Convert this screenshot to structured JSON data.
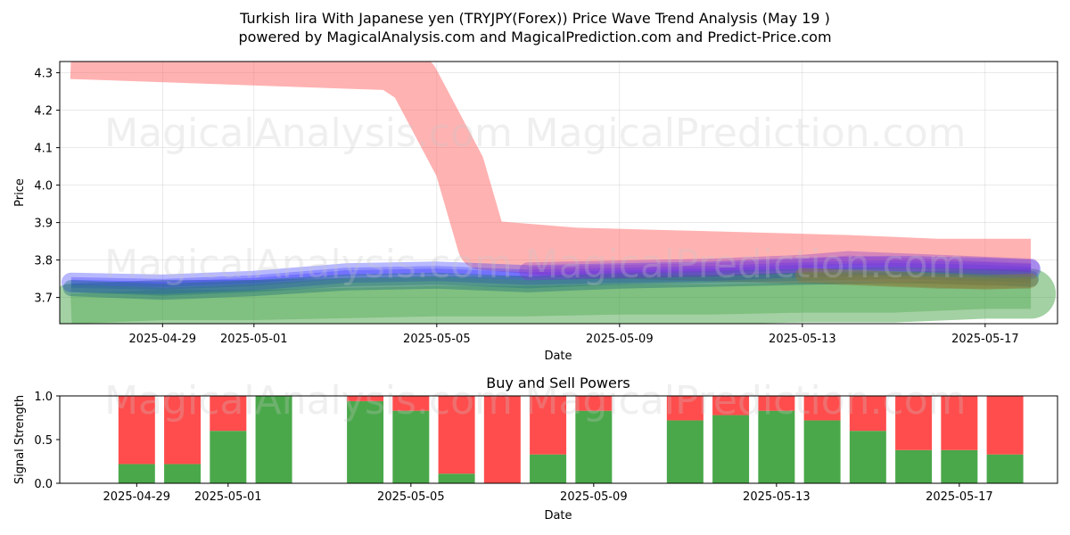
{
  "chart_data": [
    {
      "type": "area",
      "title": "Turkish lira With Japanese yen (TRYJPY(Forex)) Price Wave Trend Analysis (May 19 )",
      "subtitle": "powered by MagicalAnalysis.com and MagicalPrediction.com and Predict-Price.com",
      "xlabel": "Date",
      "ylabel": "Price",
      "xlim": [
        "2025-04-26T18:00",
        "2025-05-18T14:00"
      ],
      "ylim": [
        3.63,
        4.33
      ],
      "xticks": [
        "2025-04-29",
        "2025-05-01",
        "2025-05-05",
        "2025-05-09",
        "2025-05-13",
        "2025-05-17"
      ],
      "yticks": [
        3.7,
        3.8,
        3.9,
        4.0,
        4.1,
        4.2,
        4.3
      ],
      "grid": true,
      "watermarks": [
        "MagicalAnalysis.com",
        "MagicalPrediction.com"
      ],
      "series": [
        {
          "name": "upper-wave",
          "color": "#ff6666",
          "x": [
            "2025-04-27",
            "2025-05-04",
            "2025-05-04T12:00",
            "2025-05-05T12:00",
            "2025-05-06",
            "2025-05-08",
            "2025-05-11",
            "2025-05-14",
            "2025-05-16",
            "2025-05-18"
          ],
          "values": [
            4.35,
            4.32,
            4.28,
            4.05,
            3.84,
            3.82,
            3.81,
            3.8,
            3.79,
            3.79
          ]
        },
        {
          "name": "lower-wave",
          "color": "#339933",
          "x": [
            "2025-04-27",
            "2025-04-29",
            "2025-05-01",
            "2025-05-03",
            "2025-05-05",
            "2025-05-07",
            "2025-05-09",
            "2025-05-11",
            "2025-05-13",
            "2025-05-15",
            "2025-05-17",
            "2025-05-18"
          ],
          "values": [
            3.67,
            3.68,
            3.68,
            3.685,
            3.69,
            3.69,
            3.695,
            3.695,
            3.7,
            3.7,
            3.71,
            3.71
          ]
        },
        {
          "name": "blue-wave",
          "color": "#3333ff",
          "x": [
            "2025-04-27",
            "2025-04-29",
            "2025-05-01",
            "2025-05-03",
            "2025-05-05",
            "2025-05-07",
            "2025-05-09",
            "2025-05-11",
            "2025-05-13",
            "2025-05-15",
            "2025-05-17",
            "2025-05-18"
          ],
          "values": [
            3.74,
            3.735,
            3.745,
            3.765,
            3.77,
            3.76,
            3.765,
            3.77,
            3.78,
            3.785,
            3.78,
            3.775
          ]
        },
        {
          "name": "teal-wave",
          "color": "#1f6f7a",
          "x": [
            "2025-04-27",
            "2025-04-29",
            "2025-05-01",
            "2025-05-03",
            "2025-05-05",
            "2025-05-07",
            "2025-05-09",
            "2025-05-11",
            "2025-05-13",
            "2025-05-15",
            "2025-05-17",
            "2025-05-18"
          ],
          "values": [
            3.725,
            3.715,
            3.725,
            3.74,
            3.745,
            3.735,
            3.745,
            3.75,
            3.755,
            3.76,
            3.755,
            3.75
          ]
        },
        {
          "name": "purple-wave",
          "color": "#8833cc",
          "x": [
            "2025-05-07",
            "2025-05-09",
            "2025-05-11",
            "2025-05-13",
            "2025-05-14",
            "2025-05-15",
            "2025-05-17",
            "2025-05-18"
          ],
          "values": [
            3.77,
            3.775,
            3.78,
            3.79,
            3.8,
            3.795,
            3.785,
            3.78
          ]
        },
        {
          "name": "olive-wave",
          "color": "#8c7a3a",
          "x": [
            "2025-05-13",
            "2025-05-14",
            "2025-05-15",
            "2025-05-16",
            "2025-05-17",
            "2025-05-18"
          ],
          "values": [
            3.76,
            3.755,
            3.75,
            3.745,
            3.74,
            3.745
          ]
        }
      ]
    },
    {
      "type": "bar",
      "title": "Buy and Sell Powers",
      "xlabel": "Date",
      "ylabel": "Signal Strength",
      "ylim": [
        0,
        1
      ],
      "yticks": [
        "0.0",
        "0.5",
        "1.0"
      ],
      "xticks": [
        "2025-04-29",
        "2025-05-01",
        "2025-05-05",
        "2025-05-09",
        "2025-05-13",
        "2025-05-17"
      ],
      "buy_color": "#4aa84a",
      "sell_color": "#ff4d4d",
      "categories": [
        "2025-04-29",
        "2025-04-30",
        "2025-05-01",
        "2025-05-02",
        "2025-05-04",
        "2025-05-05",
        "2025-05-06",
        "2025-05-07",
        "2025-05-08",
        "2025-05-09",
        "2025-05-11",
        "2025-05-12",
        "2025-05-13",
        "2025-05-14",
        "2025-05-15",
        "2025-05-16",
        "2025-05-17",
        "2025-05-18"
      ],
      "series": [
        {
          "name": "Buy",
          "values": [
            0.22,
            0.22,
            0.6,
            1.0,
            0.94,
            0.83,
            0.11,
            0.0,
            0.33,
            0.83,
            0.72,
            0.78,
            0.83,
            0.72,
            0.6,
            0.38,
            0.38,
            0.33
          ]
        },
        {
          "name": "Sell",
          "values": [
            0.78,
            0.78,
            0.4,
            0.0,
            0.06,
            0.17,
            0.89,
            1.0,
            0.67,
            0.17,
            0.28,
            0.22,
            0.17,
            0.28,
            0.4,
            0.62,
            0.62,
            0.67
          ]
        }
      ]
    }
  ]
}
